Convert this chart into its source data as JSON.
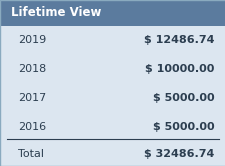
{
  "title": "Lifetime View",
  "header_bg": "#5b7b9e",
  "header_text_color": "#ffffff",
  "body_bg": "#dce6f0",
  "body_text_color": "#2c3e50",
  "separator_color": "#2c3e50",
  "rows": [
    {
      "year": "2019",
      "amount": "$ 12486.74"
    },
    {
      "year": "2018",
      "amount": "$ 10000.00"
    },
    {
      "year": "2017",
      "amount": "$ 5000.00"
    },
    {
      "year": "2016",
      "amount": "$ 5000.00"
    }
  ],
  "total_label": "Total",
  "total_amount": "$ 32486.74",
  "title_fontsize": 8.5,
  "row_fontsize": 8,
  "total_fontsize": 8
}
